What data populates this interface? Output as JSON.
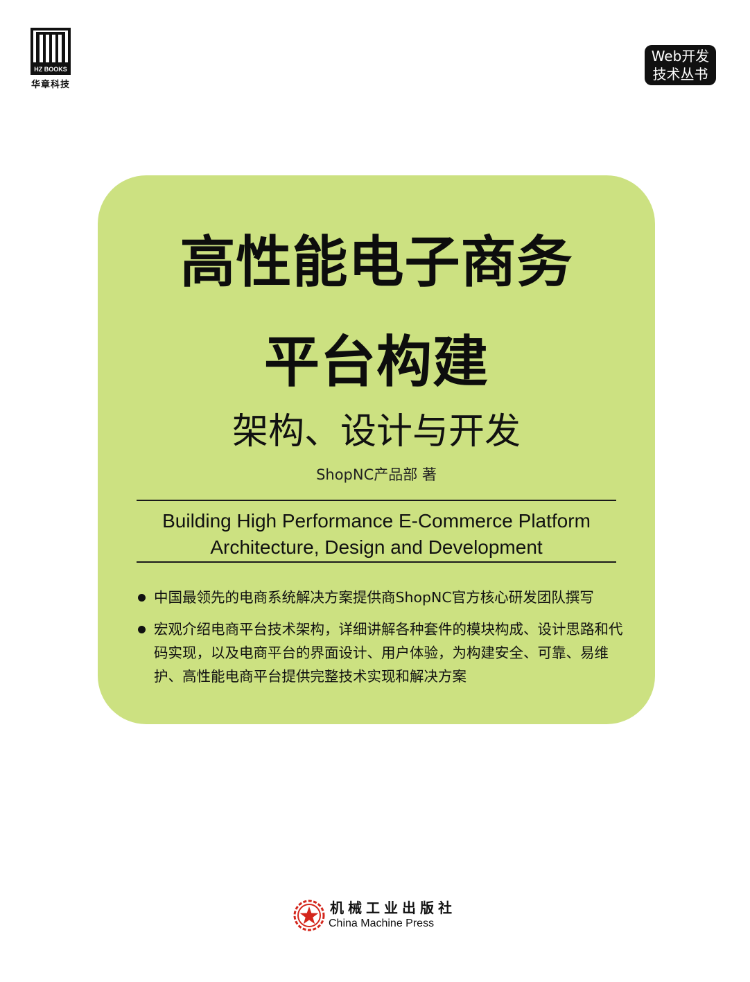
{
  "publisher_logo": {
    "brand_lettering": "HZ BOOKS",
    "chinese": "华章科技"
  },
  "series_badge": {
    "line1": "Web开发",
    "line2": "技术丛书"
  },
  "cover": {
    "title_line1": "高性能电子商务",
    "title_line2": "平台构建",
    "subtitle": "架构、设计与开发",
    "author": "ShopNC产品部 著",
    "english_title_line1": "Building High Performance E-Commerce Platform",
    "english_title_line2": "Architecture, Design and Development",
    "bullets": [
      "中国最领先的电商系统解决方案提供商ShopNC官方核心研发团队撰写",
      "宏观介绍电商平台技术架构，详细讲解各种套件的模块构成、设计思路和代码实现，以及电商平台的界面设计、用户体验，为构建安全、可靠、易维护、高性能电商平台提供完整技术实现和解决方案"
    ]
  },
  "press": {
    "chinese": "机械工业出版社",
    "english": "China Machine Press"
  },
  "colors": {
    "panel_green": "#cce181",
    "text_black": "#111111",
    "emblem_red": "#d4261c"
  }
}
